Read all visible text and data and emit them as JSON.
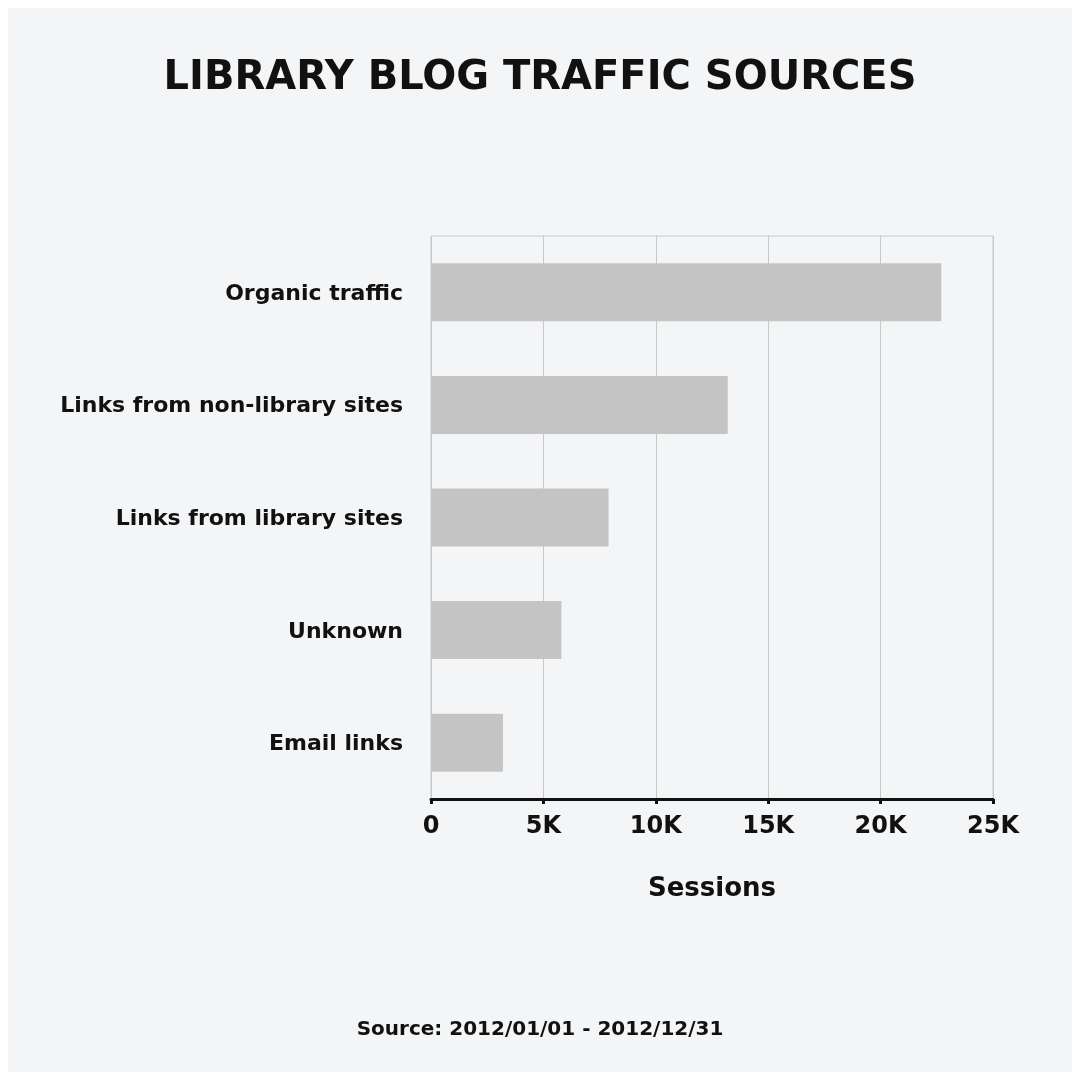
{
  "chart_data": {
    "type": "bar",
    "orientation": "horizontal",
    "title": "LIBRARY BLOG TRAFFIC SOURCES",
    "xlabel": "Sessions",
    "categories": [
      "Organic traffic",
      "Links from non-library sites",
      "Links from library sites",
      "Unknown",
      "Email links"
    ],
    "values": [
      22.7,
      13.2,
      7.9,
      5.8,
      3.2
    ],
    "color": "#c4c4c4",
    "xlim": [
      0,
      25
    ],
    "xticks": [
      {
        "value": 0,
        "label": "0"
      },
      {
        "value": 5,
        "label": "5K"
      },
      {
        "value": 10,
        "label": "10K"
      },
      {
        "value": 15,
        "label": "15K"
      },
      {
        "value": 20,
        "label": "20K"
      },
      {
        "value": 25,
        "label": "25K"
      }
    ],
    "grid": "x",
    "annotations": [
      "Source: 2012/01/01 - 2012/12/31"
    ]
  }
}
